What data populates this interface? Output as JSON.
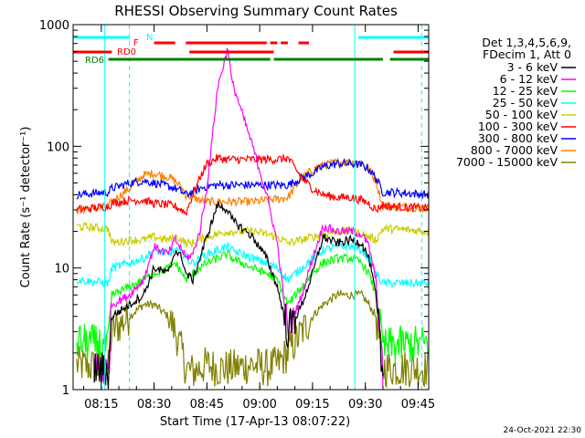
{
  "chart_data": {
    "type": "line",
    "title": "RHESSI Observing Summary Count Rates",
    "xlabel": "Start Time (17-Apr-13 08:07:22)",
    "ylabel": "Count Rate (s⁻¹ detector⁻¹)",
    "yscale": "log",
    "ylim": [
      1,
      1000
    ],
    "xlim_minutes": [
      487,
      588
    ],
    "grid": false,
    "legend_position": "right",
    "x_ticks": [
      "08:15",
      "08:30",
      "08:45",
      "09:00",
      "09:15",
      "09:30",
      "09:45"
    ],
    "y_ticks": [
      "1",
      "10",
      "100",
      "1000"
    ],
    "legend_header": [
      "Det 1,3,4,5,6,9,",
      "FDecim 1, Att 0"
    ],
    "series": [
      {
        "name": "3 - 6 keV",
        "color": "#000000",
        "x": [
          493,
          497,
          498,
          503,
          507,
          510,
          514,
          516,
          518,
          519,
          521,
          523,
          525,
          528,
          531,
          532,
          538,
          542,
          545,
          548,
          552,
          555,
          558,
          562,
          566,
          569,
          571,
          573,
          575
        ],
        "y": [
          1.5,
          1.4,
          4,
          5,
          6,
          10,
          9,
          14,
          12,
          9,
          8,
          12,
          18,
          33,
          30,
          25,
          18,
          12,
          7,
          3,
          5,
          9,
          18,
          16,
          17,
          16,
          12,
          6,
          1.2
        ]
      },
      {
        "name": "6 - 12 keV",
        "color": "#ff00ff",
        "x": [
          493,
          497,
          498,
          503,
          507,
          510,
          514,
          516,
          518,
          519,
          521,
          523,
          525,
          528,
          531,
          532,
          538,
          542,
          545,
          548,
          552,
          555,
          558,
          562,
          566,
          569,
          571,
          573,
          575
        ],
        "y": [
          1.5,
          1.4,
          5,
          6,
          8,
          15,
          13,
          17,
          14,
          12,
          13,
          20,
          45,
          300,
          650,
          350,
          100,
          40,
          16,
          3,
          6,
          12,
          22,
          20,
          20,
          19,
          15,
          8,
          1.2
        ]
      },
      {
        "name": "12 - 25 keV",
        "color": "#00ff00",
        "x": [
          488,
          497,
          498,
          503,
          507,
          510,
          514,
          516,
          518,
          519,
          521,
          523,
          525,
          528,
          531,
          532,
          538,
          542,
          545,
          548,
          552,
          555,
          558,
          562,
          566,
          569,
          571,
          573,
          575,
          577,
          588
        ],
        "y": [
          2.5,
          2.3,
          6,
          7,
          8,
          9,
          10,
          11,
          9,
          8,
          9,
          10,
          11,
          12,
          13,
          12,
          10,
          9,
          8,
          5,
          7,
          9,
          11,
          12,
          12,
          11,
          9,
          6,
          2.2,
          2.3,
          2.4
        ]
      },
      {
        "name": "25 - 50 keV",
        "color": "#00ffff",
        "x": [
          488,
          497,
          498,
          503,
          507,
          510,
          514,
          516,
          518,
          519,
          521,
          523,
          525,
          528,
          531,
          532,
          538,
          542,
          545,
          548,
          552,
          555,
          558,
          562,
          566,
          569,
          571,
          573,
          575,
          577,
          588
        ],
        "y": [
          8,
          7.5,
          10,
          11,
          12,
          14,
          13,
          14,
          13,
          12,
          11,
          12,
          13,
          14,
          15,
          14,
          12,
          11,
          10,
          8,
          10,
          12,
          14,
          15,
          15,
          14,
          12,
          9,
          7.5,
          7.5,
          7.5
        ]
      },
      {
        "name": "50 - 100 keV",
        "color": "#cccc00",
        "x": [
          488,
          497,
          498,
          503,
          507,
          510,
          514,
          516,
          518,
          519,
          521,
          523,
          525,
          528,
          531,
          532,
          538,
          542,
          545,
          548,
          552,
          555,
          558,
          562,
          566,
          569,
          571,
          573,
          575,
          577,
          588
        ],
        "y": [
          22,
          21,
          16,
          17,
          17,
          18,
          17,
          18,
          17,
          16,
          16,
          17,
          18,
          19,
          20,
          20,
          20,
          19,
          18,
          16,
          17,
          18,
          19,
          20,
          20,
          19,
          18,
          17,
          21,
          21,
          20
        ]
      },
      {
        "name": "100 - 300 keV",
        "color": "#ff0000",
        "x": [
          488,
          497,
          498,
          503,
          507,
          510,
          514,
          516,
          518,
          519,
          521,
          523,
          525,
          528,
          531,
          532,
          538,
          542,
          545,
          548,
          552,
          555,
          558,
          562,
          566,
          569,
          571,
          573,
          575,
          577,
          588
        ],
        "y": [
          30,
          32,
          34,
          36,
          36,
          34,
          33,
          32,
          30,
          28,
          40,
          55,
          72,
          80,
          78,
          78,
          78,
          78,
          78,
          80,
          55,
          45,
          40,
          38,
          38,
          36,
          34,
          30,
          33,
          32,
          31
        ]
      },
      {
        "name": "300 - 800 keV",
        "color": "#0000ff",
        "x": [
          488,
          497,
          498,
          503,
          507,
          510,
          514,
          516,
          518,
          519,
          521,
          523,
          525,
          528,
          531,
          532,
          538,
          542,
          545,
          548,
          552,
          555,
          558,
          562,
          566,
          569,
          571,
          573,
          575,
          577,
          588
        ],
        "y": [
          40,
          42,
          45,
          50,
          52,
          50,
          47,
          45,
          42,
          40,
          42,
          45,
          47,
          48,
          48,
          48,
          48,
          48,
          48,
          48,
          55,
          60,
          68,
          72,
          72,
          70,
          65,
          55,
          42,
          42,
          40
        ]
      },
      {
        "name": "800 - 7000 keV",
        "color": "#ff8000",
        "x": [
          488,
          497,
          498,
          503,
          507,
          510,
          514,
          516,
          518,
          519,
          521,
          523,
          525,
          528,
          531,
          532,
          538,
          542,
          545,
          548,
          552,
          555,
          558,
          562,
          566,
          569,
          571,
          573,
          575,
          577,
          588
        ],
        "y": [
          30,
          32,
          35,
          45,
          58,
          60,
          56,
          52,
          45,
          40,
          38,
          36,
          35,
          35,
          35,
          35,
          35,
          36,
          37,
          38,
          55,
          64,
          70,
          74,
          74,
          72,
          65,
          52,
          32,
          32,
          31
        ]
      },
      {
        "name": "7000 - 15000 keV",
        "color": "#808000",
        "x": [
          488,
          497,
          498,
          503,
          507,
          510,
          514,
          516,
          518,
          519,
          521,
          523,
          525,
          528,
          531,
          532,
          538,
          542,
          545,
          548,
          552,
          555,
          558,
          562,
          566,
          569,
          571,
          573,
          575,
          577,
          588
        ],
        "y": [
          1.6,
          1.5,
          3,
          4,
          5,
          5,
          4,
          3,
          2,
          1.5,
          1.4,
          1.5,
          1.6,
          1.5,
          1.5,
          1.5,
          1.6,
          1.5,
          1.6,
          2,
          3,
          4,
          5,
          6,
          6,
          6,
          5,
          4,
          1.5,
          1.5,
          1.5
        ]
      }
    ],
    "flags": [
      {
        "name": "N",
        "color": "#00ffff"
      },
      {
        "name": "F",
        "color": "#ff0000"
      },
      {
        "name": "RD0",
        "color": "#ff0000"
      },
      {
        "name": "RD6",
        "color": "#008000"
      }
    ],
    "flag_segments": {
      "N": [
        [
          487,
          503
        ],
        [
          568,
          588
        ]
      ],
      "F": [
        [
          510,
          516
        ],
        [
          519,
          542
        ],
        [
          543,
          545
        ],
        [
          546,
          548
        ],
        [
          551,
          554
        ]
      ],
      "RD0": [
        [
          487,
          498
        ],
        [
          520,
          544
        ],
        [
          578,
          588
        ]
      ],
      "RD6": [
        [
          497,
          520
        ],
        [
          520,
          543
        ],
        [
          544,
          575
        ],
        [
          577,
          588
        ]
      ]
    },
    "vertical_markers": {
      "dashed_cyan": [
        503,
        586
      ],
      "solid_cyan": [
        567,
        496
      ]
    }
  },
  "timestamp": "24-Oct-2021 22:30"
}
